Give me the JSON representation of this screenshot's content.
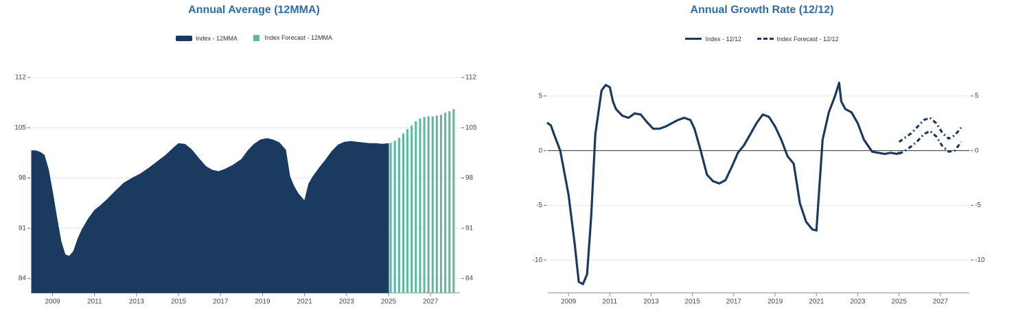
{
  "charts": {
    "left": {
      "title": "Annual Average (12MMA)",
      "legend": [
        {
          "label": "Index - 12MMA",
          "color": "#1a3a5f",
          "style": "bar"
        },
        {
          "label": "Index Forecast - 12MMA",
          "color": "#5fb9a0",
          "style": "square"
        }
      ]
    },
    "right": {
      "title": "Annual Growth Rate (12/12)",
      "legend": [
        {
          "label": "Index - 12/12",
          "color": "#1a3a5f",
          "style": "line"
        },
        {
          "label": "Index Forecast - 12/12",
          "color": "#1a3a5f",
          "style": "dash"
        }
      ]
    }
  },
  "chart_data": [
    {
      "type": "area",
      "title": "Annual Average (12MMA)",
      "x_ticks": [
        "2009",
        "2011",
        "2013",
        "2015",
        "2017",
        "2019",
        "2021",
        "2023",
        "2025",
        "2027"
      ],
      "y_ticks": [
        "84",
        "91",
        "98",
        "105",
        "112"
      ],
      "ylim": [
        82,
        114
      ],
      "xlim": [
        2008.0,
        2028.4
      ],
      "grid": true,
      "legend_position": "top",
      "series": [
        {
          "name": "Index - 12MMA",
          "type": "area",
          "x": [
            2008.0,
            2008.2,
            2008.4,
            2008.6,
            2008.8,
            2009.0,
            2009.2,
            2009.4,
            2009.6,
            2009.8,
            2010.0,
            2010.2,
            2010.4,
            2010.7,
            2011.0,
            2011.3,
            2011.6,
            2012.0,
            2012.4,
            2012.8,
            2013.2,
            2013.6,
            2014.0,
            2014.4,
            2014.8,
            2015.0,
            2015.3,
            2015.6,
            2016.0,
            2016.3,
            2016.6,
            2016.9,
            2017.2,
            2017.6,
            2018.0,
            2018.3,
            2018.6,
            2018.9,
            2019.2,
            2019.5,
            2019.8,
            2020.1,
            2020.3,
            2020.5,
            2020.7,
            2021.0,
            2021.2,
            2021.4,
            2021.7,
            2022.0,
            2022.3,
            2022.6,
            2022.9,
            2023.2,
            2023.5,
            2023.8,
            2024.1,
            2024.4,
            2024.7,
            2025.0
          ],
          "values": [
            101.8,
            101.8,
            101.6,
            101.2,
            99.2,
            96.0,
            92.5,
            89.2,
            87.3,
            87.1,
            87.8,
            89.5,
            90.8,
            92.3,
            93.5,
            94.2,
            95.0,
            96.2,
            97.3,
            98.0,
            98.6,
            99.4,
            100.3,
            101.2,
            102.3,
            102.8,
            102.7,
            102.0,
            100.6,
            99.6,
            99.1,
            98.9,
            99.2,
            99.8,
            100.6,
            101.8,
            102.7,
            103.3,
            103.5,
            103.3,
            102.9,
            101.9,
            98.2,
            96.8,
            95.8,
            94.8,
            97.2,
            98.2,
            99.4,
            100.5,
            101.7,
            102.6,
            103.0,
            103.1,
            103.0,
            102.9,
            102.8,
            102.8,
            102.7,
            102.8
          ]
        },
        {
          "name": "Index Forecast - 12MMA",
          "type": "bar",
          "x": [
            2025.1,
            2025.3,
            2025.5,
            2025.7,
            2025.9,
            2026.1,
            2026.3,
            2026.5,
            2026.7,
            2026.9,
            2027.1,
            2027.3,
            2027.5,
            2027.7,
            2027.9,
            2028.1
          ],
          "values": [
            102.9,
            103.2,
            103.6,
            104.2,
            104.8,
            105.3,
            105.9,
            106.3,
            106.5,
            106.6,
            106.6,
            106.7,
            106.8,
            107.1,
            107.3,
            107.6
          ]
        }
      ]
    },
    {
      "type": "line",
      "title": "Annual Growth Rate (12/12)",
      "x_ticks": [
        "2009",
        "2011",
        "2013",
        "2015",
        "2017",
        "2019",
        "2021",
        "2023",
        "2025",
        "2027"
      ],
      "y_ticks": [
        "5",
        "0",
        "-5",
        "-10"
      ],
      "ylim": [
        -13,
        8
      ],
      "xlim": [
        2008.0,
        2028.4
      ],
      "grid": true,
      "legend_position": "top",
      "series": [
        {
          "name": "Index - 12/12",
          "style": "solid",
          "x": [
            2008.0,
            2008.15,
            2008.3,
            2008.6,
            2009.0,
            2009.3,
            2009.5,
            2009.7,
            2009.9,
            2010.1,
            2010.3,
            2010.6,
            2010.8,
            2011.0,
            2011.15,
            2011.3,
            2011.6,
            2011.9,
            2012.2,
            2012.5,
            2012.8,
            2013.1,
            2013.4,
            2013.7,
            2014.0,
            2014.3,
            2014.6,
            2014.9,
            2015.1,
            2015.4,
            2015.7,
            2016.0,
            2016.3,
            2016.6,
            2016.9,
            2017.2,
            2017.5,
            2017.8,
            2018.1,
            2018.4,
            2018.7,
            2019.0,
            2019.3,
            2019.6,
            2019.9,
            2020.2,
            2020.5,
            2020.8,
            2021.0,
            2021.1,
            2021.3,
            2021.6,
            2021.9,
            2022.1,
            2022.2,
            2022.4,
            2022.7,
            2023.0,
            2023.3,
            2023.7,
            2024.0,
            2024.3,
            2024.6,
            2024.9,
            2025.0
          ],
          "values": [
            2.5,
            2.3,
            1.5,
            0.0,
            -4.0,
            -8.5,
            -12.0,
            -12.2,
            -11.3,
            -6.0,
            1.5,
            5.5,
            6.0,
            5.8,
            4.5,
            3.8,
            3.2,
            3.0,
            3.4,
            3.3,
            2.6,
            2.0,
            2.0,
            2.2,
            2.5,
            2.8,
            3.0,
            2.8,
            2.0,
            0.0,
            -2.2,
            -2.8,
            -3.0,
            -2.7,
            -1.5,
            -0.2,
            0.5,
            1.5,
            2.5,
            3.3,
            3.1,
            2.2,
            1.0,
            -0.5,
            -1.2,
            -4.8,
            -6.5,
            -7.2,
            -7.3,
            -4.5,
            1.0,
            3.5,
            5.0,
            6.2,
            4.5,
            3.8,
            3.5,
            2.5,
            1.0,
            -0.1,
            -0.2,
            -0.3,
            -0.2,
            -0.3,
            -0.2
          ]
        },
        {
          "name": "Index Forecast - 12/12",
          "style": "dashed",
          "x": [
            2025.0,
            2025.3,
            2025.6,
            2025.9,
            2026.2,
            2026.5,
            2026.8,
            2027.1,
            2027.4,
            2027.7,
            2028.0
          ],
          "values": [
            0.8,
            1.2,
            1.6,
            2.2,
            2.8,
            3.0,
            2.5,
            1.6,
            1.1,
            1.4,
            2.1
          ]
        },
        {
          "name": "Index Forecast - 12/12",
          "style": "dashed",
          "x": [
            2025.0,
            2025.3,
            2025.6,
            2025.9,
            2026.2,
            2026.5,
            2026.8,
            2027.1,
            2027.4,
            2027.7,
            2028.0
          ],
          "values": [
            -0.3,
            0.0,
            0.4,
            0.9,
            1.5,
            1.8,
            1.3,
            0.4,
            -0.1,
            0.0,
            0.8
          ]
        }
      ]
    }
  ]
}
